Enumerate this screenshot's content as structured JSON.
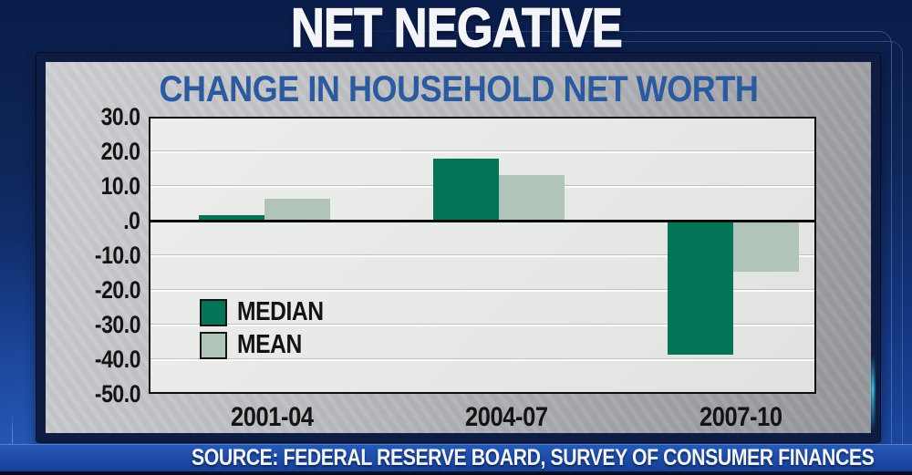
{
  "page": {
    "title": "NET NEGATIVE"
  },
  "panel": {
    "title": "CHANGE IN HOUSEHOLD NET WORTH"
  },
  "chart_data": {
    "type": "bar",
    "title": "CHANGE IN HOUSEHOLD NET WORTH",
    "categories": [
      "2001-04",
      "2004-07",
      "2007-10"
    ],
    "series": [
      {
        "name": "MEDIAN",
        "color": "#057456",
        "values": [
          1.5,
          17.9,
          -38.8
        ]
      },
      {
        "name": "MEAN",
        "color": "#b0c4ba",
        "values": [
          6.3,
          13.1,
          -14.7
        ]
      }
    ],
    "ylim": [
      -50,
      30
    ],
    "yticks": [
      30,
      20,
      10,
      0,
      -10,
      -20,
      -30,
      -40,
      -50
    ],
    "ytick_labels": [
      "30.0",
      "20.0",
      "10.0",
      ".0",
      "-10.0",
      "-20.0",
      "-30.0",
      "-40.0",
      "-50.0"
    ],
    "grid": true,
    "zero_baseline": true,
    "legend_position": "inside lower-left"
  },
  "footer": {
    "source": "SOURCE: FEDERAL RESERVE BOARD, SURVEY OF CONSUMER FINANCES"
  },
  "colors": {
    "background_top": "#0a1c49",
    "background_bottom": "#1d4ca6",
    "panel_border": "#0e1c44",
    "panel_gray_light": "#cdcfd2",
    "panel_gray_dark": "#94969b",
    "plot_background": "#e8eae8",
    "page_title_text": "#f4f5f8",
    "chart_title_text": "#2b5a9e",
    "axis_text": "#131413",
    "median_green": "#057456",
    "mean_sage": "#b0c4ba",
    "source_band_blue": "#1e4da8"
  }
}
